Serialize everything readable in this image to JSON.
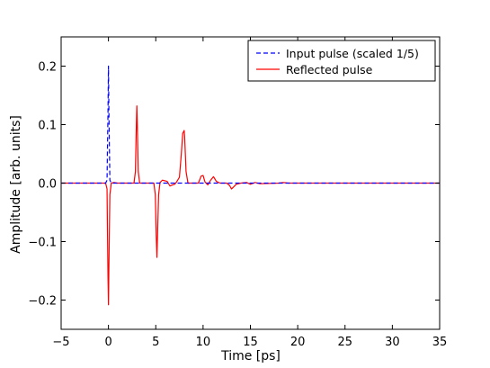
{
  "chart_data": {
    "type": "line",
    "xlabel": "Time [ps]",
    "ylabel": "Amplitude [arb. units]",
    "xlim": [
      -5,
      35
    ],
    "ylim": [
      -0.25,
      0.25
    ],
    "xticks": [
      -5,
      0,
      5,
      10,
      15,
      20,
      25,
      30,
      35
    ],
    "xtick_labels": [
      "−5",
      "0",
      "5",
      "10",
      "15",
      "20",
      "25",
      "30",
      "35"
    ],
    "yticks": [
      -0.2,
      -0.1,
      0.0,
      0.1,
      0.2
    ],
    "ytick_labels": [
      "−0.2",
      "−0.1",
      "0.0",
      "0.1",
      "0.2"
    ],
    "grid": false,
    "legend_position": "top-right",
    "series": [
      {
        "name": "Input pulse (scaled 1/5)",
        "color": "#0000ff",
        "style": "dashed",
        "x": [
          -5,
          -0.3,
          -0.15,
          -0.05,
          0.0,
          0.05,
          0.15,
          0.3,
          35
        ],
        "y": [
          0,
          0,
          0.005,
          0.12,
          0.2,
          0.12,
          0.005,
          0,
          0
        ]
      },
      {
        "name": "Reflected pulse",
        "color": "#ff0000",
        "style": "solid",
        "x": [
          -5,
          -0.3,
          -0.15,
          -0.05,
          0.0,
          0.05,
          0.15,
          0.3,
          0.6,
          0.9,
          2.7,
          2.85,
          2.95,
          3.0,
          3.05,
          3.15,
          3.3,
          3.6,
          4.8,
          4.95,
          5.05,
          5.12,
          5.2,
          5.3,
          5.45,
          5.7,
          6.2,
          6.5,
          6.8,
          7.0,
          7.2,
          7.5,
          7.7,
          7.85,
          8.0,
          8.05,
          8.2,
          8.4,
          8.7,
          9.5,
          9.8,
          10.0,
          10.2,
          10.5,
          10.8,
          11.1,
          11.4,
          11.8,
          12.5,
          12.8,
          13.0,
          13.2,
          13.5,
          14.0,
          14.6,
          15.0,
          15.5,
          16.0,
          18.0,
          18.5,
          19.0,
          35
        ],
        "y": [
          0,
          0,
          -0.01,
          -0.16,
          -0.208,
          -0.14,
          -0.02,
          0,
          0.001,
          0,
          0,
          0.02,
          0.1,
          0.132,
          0.1,
          0.02,
          0,
          0,
          0,
          -0.02,
          -0.09,
          -0.127,
          -0.08,
          -0.02,
          0.001,
          0.005,
          0.003,
          -0.005,
          -0.003,
          -0.002,
          0.002,
          0.01,
          0.05,
          0.085,
          0.09,
          0.08,
          0.02,
          0,
          0,
          0,
          0.012,
          0.013,
          0.002,
          -0.003,
          0.005,
          0.011,
          0.003,
          0,
          0,
          -0.004,
          -0.01,
          -0.007,
          -0.002,
          0,
          0.001,
          -0.002,
          0.001,
          -0.001,
          0,
          0.001,
          0,
          0
        ]
      }
    ]
  }
}
